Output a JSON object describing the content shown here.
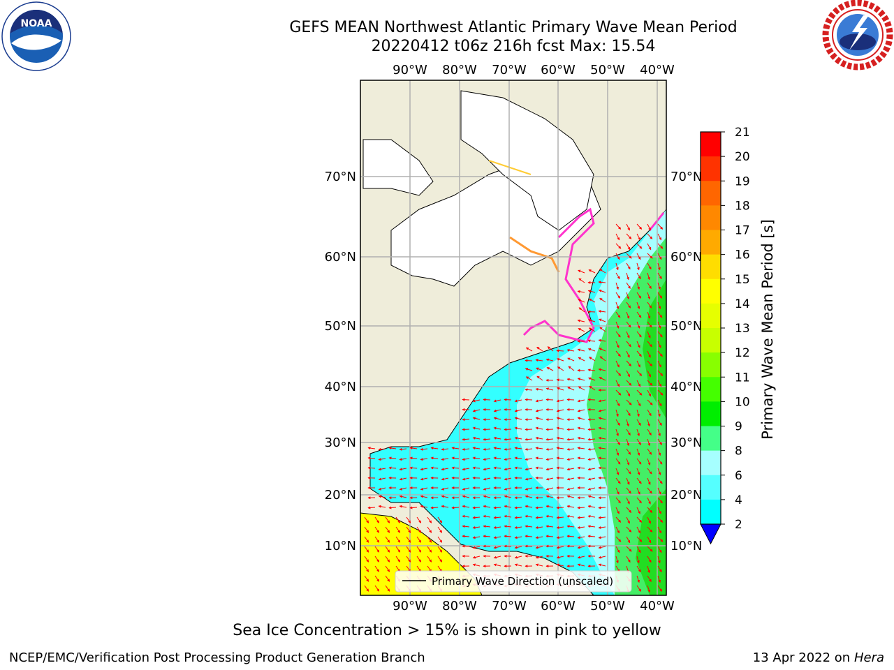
{
  "title": {
    "line1": "GEFS MEAN Northwest Atlantic Primary Wave Mean Period",
    "line2": "20220412 t06z 216h fcst   Max: 15.54"
  },
  "logos": {
    "noaa": {
      "name": "noaa-logo",
      "text": "NOAA",
      "ring_text": "NATIONAL OCEANIC AND ATMOSPHERIC ADMINISTRATION · U.S. DEPARTMENT OF COMMERCE"
    },
    "nws": {
      "name": "nws-logo",
      "ring_text": "NATIONAL WEATHER SERVICE"
    }
  },
  "map": {
    "lon_ticks": [
      "90°W",
      "80°W",
      "70°W",
      "60°W",
      "50°W",
      "40°W"
    ],
    "lat_ticks": [
      "70°N",
      "60°N",
      "50°N",
      "40°N",
      "30°N",
      "20°N",
      "10°N"
    ],
    "legend_label": "Primary Wave Direction (unscaled)",
    "colors": {
      "land": "#efedda",
      "ice_free_cold": "#ffffff",
      "cyan": "#33ffff",
      "light_cyan": "#a6ffff",
      "green": "#44ee66",
      "green2": "#22dd22",
      "yellow": "#ffff00",
      "arrow": "#ff0000",
      "grid": "#b0b0b0"
    }
  },
  "colorbar": {
    "label": "Primary Wave Mean Period [s]",
    "ticks": [
      "21",
      "20",
      "19",
      "18",
      "17",
      "16",
      "15",
      "14",
      "13",
      "12",
      "11",
      "10",
      "9",
      "8",
      "6",
      "4",
      "2"
    ],
    "colors": [
      "#ff0000",
      "#ff3300",
      "#ff6600",
      "#ff8800",
      "#ffaa00",
      "#ffdd00",
      "#ffff00",
      "#e6ff00",
      "#c8ff00",
      "#88ff00",
      "#44ff00",
      "#00ee00",
      "#44ff88",
      "#a6ffff",
      "#55ffff",
      "#00ffff",
      "#0088ff",
      "#0000ff"
    ]
  },
  "footer": {
    "subtitle": "Sea Ice Concentration > 15% is shown in pink to yellow",
    "credit": "NCEP/EMC/Verification Post Processing Product Generation Branch",
    "date_prefix": "13 Apr 2022 on ",
    "date_host": "Hera"
  }
}
